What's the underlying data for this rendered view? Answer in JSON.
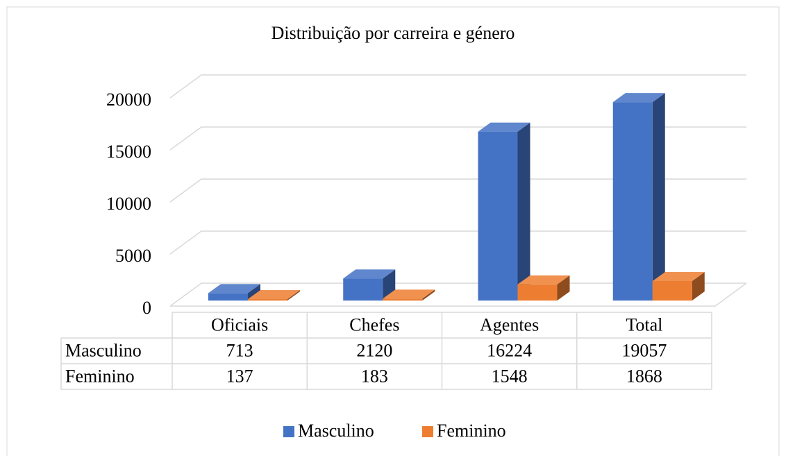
{
  "chart_data": {
    "type": "bar3d",
    "title": "Distribuição por carreira e género",
    "categories": [
      "Oficiais",
      "Chefes",
      "Agentes",
      "Total"
    ],
    "series": [
      {
        "name": "Masculino",
        "color": "#4472c4",
        "values": [
          713,
          2120,
          16224,
          19057
        ]
      },
      {
        "name": "Feminino",
        "color": "#ed7d31",
        "values": [
          137,
          183,
          1548,
          1868
        ]
      }
    ],
    "ylim": [
      0,
      20000
    ],
    "yticks": [
      0,
      5000,
      10000,
      15000,
      20000
    ],
    "grid": true,
    "data_table": true,
    "legend": "bottom"
  }
}
